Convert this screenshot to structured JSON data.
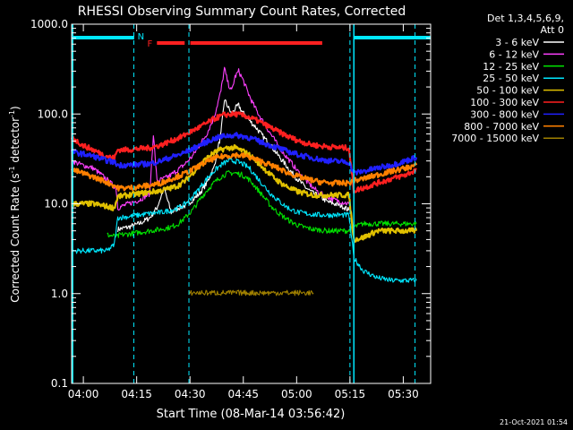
{
  "chart_data": {
    "type": "line",
    "title": "RHESSI Observing Summary Count Rates, Corrected",
    "xlabel": "Start Time (08-Mar-14 03:56:42)",
    "ylabel_main": "Corrected Count Rate (s",
    "ylabel_sup1": "-1",
    "ylabel_mid": " detector",
    "ylabel_sup2": "-1",
    "ylabel_end": ")",
    "yscale": "log",
    "ylim": [
      0.1,
      1000
    ],
    "xlim_minutes": [
      0,
      101
    ],
    "x_ticks": [
      {
        "label": "04:00",
        "m": 3.3
      },
      {
        "label": "04:15",
        "m": 18.3
      },
      {
        "label": "04:30",
        "m": 33.3
      },
      {
        "label": "04:45",
        "m": 48.3
      },
      {
        "label": "05:00",
        "m": 63.3
      },
      {
        "label": "05:15",
        "m": 78.3
      },
      {
        "label": "05:30",
        "m": 93.3
      }
    ],
    "y_ticks": [
      {
        "label": "0.1",
        "v": 0.1
      },
      {
        "label": "1.0",
        "v": 1
      },
      {
        "label": "10.0",
        "v": 10
      },
      {
        "label": "100.0",
        "v": 100
      },
      {
        "label": "1000.0",
        "v": 1000
      }
    ],
    "legend_header": [
      "Det 1,3,4,5,6,9,",
      "Att 0"
    ],
    "legend_position": "right",
    "annotations": [
      {
        "text": "N",
        "m": 19.5
      },
      {
        "text": "F",
        "m": 22.0
      }
    ],
    "night_bars": [
      [
        0,
        17.6
      ],
      [
        79.4,
        101
      ]
    ],
    "flare_bars": [
      [
        24.0,
        31.8
      ],
      [
        33.4,
        70.5
      ]
    ],
    "dashed_lines_m": [
      17.5,
      33.0,
      78.3,
      96.6
    ],
    "solid_lines_m": [
      0.3,
      79.4
    ],
    "series": [
      {
        "name": "3 - 6 keV",
        "color": "#ffffff",
        "x": [
          13,
          16,
          19,
          22,
          24,
          26,
          28,
          30,
          32,
          34,
          36,
          38,
          40,
          42,
          43,
          44,
          45,
          46,
          47,
          48,
          49,
          50,
          52,
          54,
          56,
          58,
          60,
          62,
          64,
          66,
          68,
          70,
          72,
          74,
          76,
          78
        ],
        "y": [
          5.2,
          5.5,
          6,
          7,
          9,
          15,
          8,
          9,
          9.5,
          11,
          13,
          17,
          25,
          60,
          145,
          120,
          100,
          115,
          125,
          105,
          95,
          85,
          70,
          55,
          45,
          35,
          28,
          22,
          18,
          15,
          13,
          12,
          10.5,
          10,
          9.5,
          8.5
        ]
      },
      {
        "name": "6 - 12 keV",
        "color": "#ff40ff",
        "x": [
          0,
          3,
          6,
          9,
          12.5,
          13,
          16,
          19,
          22,
          23,
          24,
          26,
          28,
          30,
          32,
          34,
          36,
          38,
          40,
          42,
          43,
          44,
          45,
          46,
          47,
          48,
          49,
          50,
          51,
          52,
          54,
          56,
          58,
          60,
          62,
          64,
          66,
          68,
          70,
          72,
          74,
          76,
          78
        ],
        "y": [
          30,
          27,
          25,
          20,
          15,
          9,
          10,
          11,
          13,
          60,
          18,
          19,
          21,
          24,
          28,
          34,
          45,
          60,
          90,
          180,
          320,
          220,
          180,
          260,
          300,
          250,
          200,
          160,
          130,
          110,
          80,
          60,
          45,
          35,
          28,
          22,
          18,
          15,
          13,
          12,
          11,
          10.5,
          10
        ]
      },
      {
        "name": "12 - 25 keV",
        "color": "#00e000",
        "x": [
          10,
          13,
          13.5,
          16,
          19,
          22,
          25,
          28,
          30,
          32,
          34,
          36,
          38,
          40,
          42,
          44,
          46,
          48,
          50,
          52,
          54,
          56,
          58,
          60,
          62,
          64,
          66,
          68,
          70,
          72,
          74,
          76,
          78,
          79.4,
          82,
          86,
          90,
          94,
          97
        ],
        "y": [
          4.5,
          4.3,
          4.5,
          4.6,
          4.8,
          5,
          5.2,
          5.5,
          6,
          7,
          8.5,
          11,
          14,
          17,
          20,
          22,
          22,
          21,
          18.5,
          15,
          12,
          9.5,
          8,
          7,
          6.2,
          5.7,
          5.4,
          5.2,
          5.1,
          5,
          5,
          5,
          5,
          5.5,
          6,
          6,
          6,
          6,
          6
        ]
      },
      {
        "name": "25 - 50 keV",
        "color": "#00e8ff",
        "x": [
          0,
          6,
          10,
          12,
          13,
          16,
          19,
          22,
          25,
          28,
          30,
          32,
          34,
          36,
          38,
          40,
          42,
          44,
          46,
          48,
          50,
          52,
          54,
          56,
          58,
          60,
          62,
          64,
          66,
          68,
          70,
          72,
          74,
          76,
          78,
          79.4,
          82,
          86,
          90,
          94,
          97
        ],
        "y": [
          3,
          3,
          3,
          3.5,
          7,
          7.2,
          7.5,
          7.8,
          8,
          8.5,
          9,
          10,
          12,
          15,
          19,
          23,
          27,
          30,
          30,
          28,
          25,
          20,
          16,
          13,
          11,
          9.5,
          8.5,
          8,
          7.8,
          7.6,
          7.5,
          7.5,
          7.5,
          7.5,
          7.5,
          2.5,
          1.8,
          1.5,
          1.4,
          1.4,
          1.4
        ]
      },
      {
        "name": "50 - 100 keV",
        "color": "#e0c000",
        "x": [
          0,
          3,
          6,
          9,
          12,
          13,
          16,
          19,
          22,
          25,
          28,
          30,
          32,
          34,
          36,
          38,
          40,
          42,
          44,
          46,
          48,
          50,
          52,
          54,
          56,
          58,
          60,
          62,
          64,
          66,
          68,
          70,
          72,
          74,
          76,
          78,
          79.4,
          82,
          86,
          90,
          94,
          97
        ],
        "y": [
          10,
          10,
          10,
          9.5,
          9,
          12,
          12.5,
          13,
          13.5,
          14,
          15,
          16,
          18,
          22,
          27,
          32,
          37,
          40,
          42,
          42,
          39,
          35,
          30,
          25,
          21,
          18,
          16,
          14.5,
          13.5,
          13,
          12.5,
          12.5,
          12.5,
          12.5,
          12.5,
          12.5,
          4,
          4.2,
          5,
          5,
          5,
          5
        ]
      },
      {
        "name": "100 - 300 keV",
        "color": "#ff2020",
        "x": [
          0,
          3,
          6,
          9,
          12,
          13,
          16,
          19,
          22,
          25,
          28,
          31,
          34,
          37,
          40,
          43,
          46,
          49,
          52,
          55,
          58,
          61,
          64,
          67,
          70,
          73,
          76,
          78,
          79.4,
          82,
          86,
          90,
          94,
          97
        ],
        "y": [
          55,
          45,
          40,
          35,
          32,
          40,
          40,
          41,
          42,
          45,
          50,
          56,
          65,
          75,
          88,
          98,
          100,
          95,
          85,
          74,
          64,
          56,
          50,
          46,
          44,
          43,
          42,
          42,
          14,
          15,
          17,
          19,
          21,
          24
        ]
      },
      {
        "name": "300 - 800 keV",
        "color": "#2020ff",
        "x": [
          0,
          3,
          6,
          9,
          12,
          13,
          16,
          19,
          22,
          25,
          28,
          31,
          34,
          37,
          40,
          43,
          46,
          49,
          52,
          55,
          58,
          61,
          64,
          67,
          70,
          73,
          76,
          78,
          79.4,
          82,
          86,
          90,
          94,
          97
        ],
        "y": [
          38,
          36,
          34,
          31,
          29,
          27,
          27,
          27.5,
          28,
          30,
          33,
          36,
          41,
          47,
          53,
          57,
          58,
          56,
          51,
          46,
          42,
          38,
          35,
          33,
          31,
          30,
          29.5,
          29,
          22,
          23,
          25,
          27,
          30,
          33
        ]
      },
      {
        "name": "800 - 7000 keV",
        "color": "#ff8000",
        "x": [
          0,
          3,
          6,
          9,
          12,
          13,
          16,
          19,
          22,
          25,
          28,
          31,
          34,
          37,
          40,
          43,
          46,
          49,
          52,
          55,
          58,
          61,
          64,
          67,
          70,
          73,
          76,
          78,
          79.4,
          82,
          86,
          90,
          94,
          97
        ],
        "y": [
          24,
          22,
          20,
          18,
          16,
          15,
          15,
          15.5,
          16,
          17,
          19,
          21,
          24,
          28,
          32,
          34,
          35,
          34,
          31,
          28,
          25,
          22,
          20,
          18.5,
          17.5,
          17,
          17,
          17,
          18,
          19,
          21,
          23,
          25,
          27
        ]
      },
      {
        "name": "7000 - 15000 keV",
        "color": "#a08000",
        "x": [
          33,
          36,
          39,
          42,
          45,
          48,
          51,
          54,
          57,
          60,
          63,
          66,
          68
        ],
        "y": [
          1.02,
          1.02,
          1.02,
          1.02,
          1.02,
          1.02,
          1.02,
          1.02,
          1.02,
          1.02,
          1.02,
          1.02,
          1.02
        ]
      }
    ]
  },
  "footer_date": "21-Oct-2021 01:54"
}
